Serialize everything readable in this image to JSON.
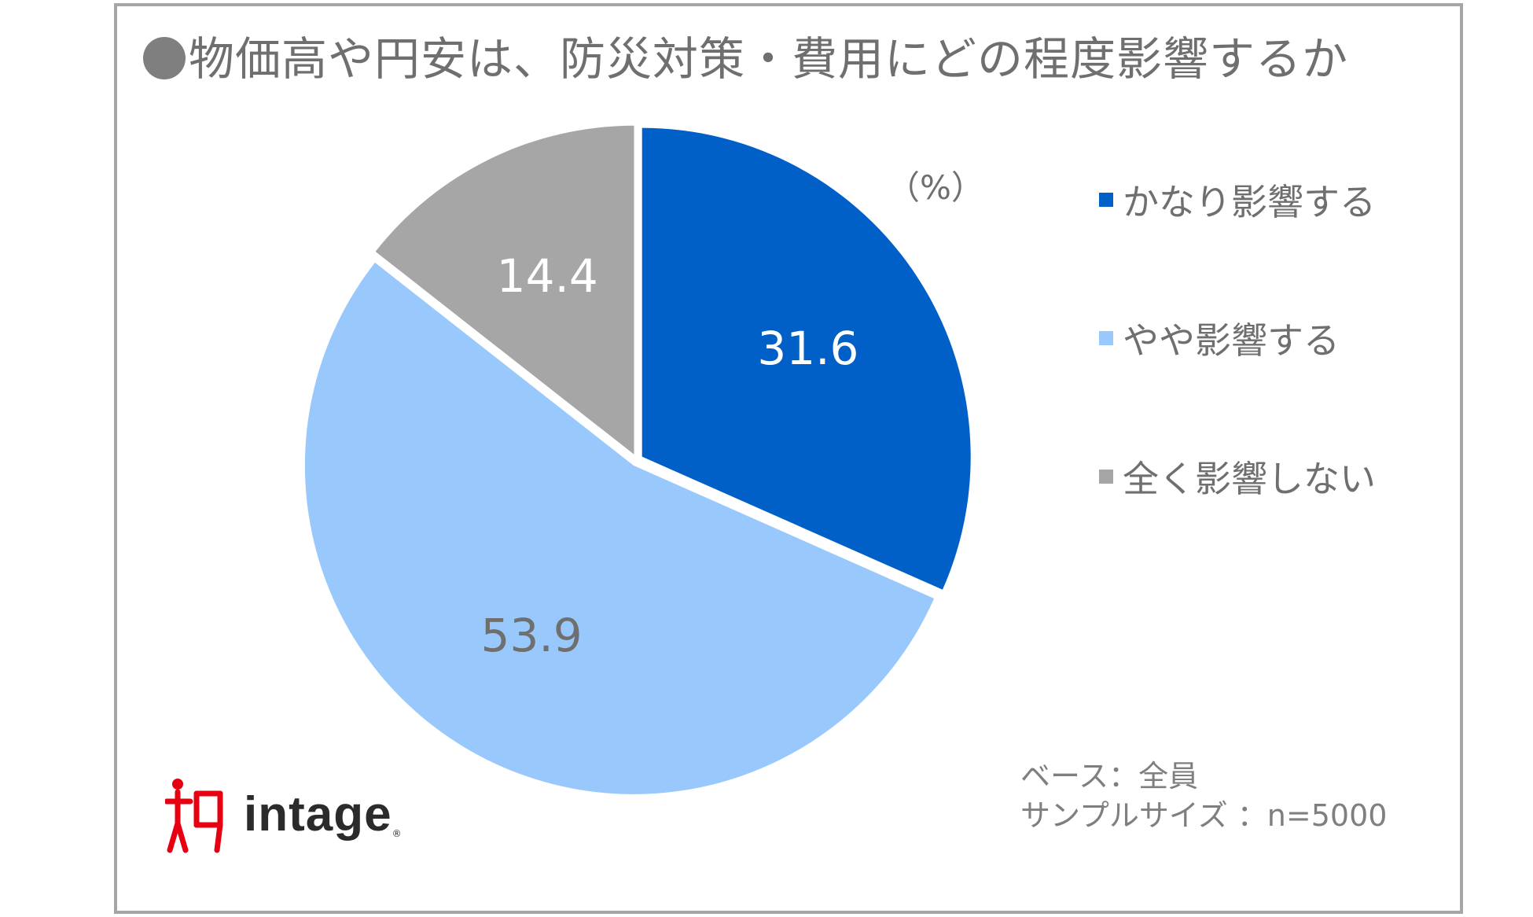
{
  "title": "物価高や円安は、防災対策・費用にどの程度影響するか",
  "unit_label": "（%）",
  "chart_data": {
    "type": "pie",
    "title": "物価高や円安は、防災対策・費用にどの程度影響するか",
    "unit": "%",
    "slices": [
      {
        "label": "かなり影響する",
        "value": 31.6,
        "color": "#0060c8",
        "label_color": "#ffffff"
      },
      {
        "label": "やや影響する",
        "value": 53.9,
        "color": "#99c9fc",
        "label_color": "#6f6f6f"
      },
      {
        "label": "全く影響しない",
        "value": 14.4,
        "color": "#a6a6a6",
        "label_color": "#ffffff"
      }
    ],
    "start_angle_deg": 0,
    "direction": "clockwise",
    "legend_position": "right"
  },
  "notes": {
    "base": "ベース：全員",
    "sample": "サンプルサイズ ：n=5000"
  },
  "logo": {
    "word": "intage",
    "registered": "®",
    "color": "#e60012"
  }
}
